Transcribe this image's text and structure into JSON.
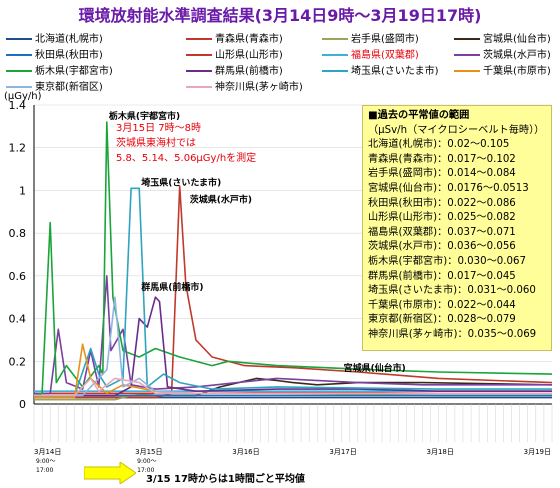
{
  "page": {
    "title": "環境放射能水準調査結果(3月14日9時～3月19日17時)"
  },
  "chart_data": {
    "type": "line",
    "ylabel": "(μGy/h)",
    "ylim": [
      0,
      1.4
    ],
    "yticks": [
      0,
      0.2,
      0.4,
      0.6,
      0.8,
      1,
      1.2,
      1.4
    ],
    "ytick_labels": [
      "0",
      "0.2",
      "0.4",
      "0.6",
      "0.8",
      "1",
      "1.2",
      "1.4"
    ],
    "x_day_labels": [
      "3月14日",
      "3月15日",
      "3月16日",
      "3月17日",
      "3月18日",
      "3月19日"
    ],
    "x_day_hours": [
      0,
      24,
      48,
      72,
      96,
      120
    ],
    "x_sublabels": [
      "9:00～",
      "17:00"
    ],
    "xlim": [
      0,
      128
    ],
    "series": [
      {
        "name": "北海道(札幌市)",
        "color": "#1f4e8c",
        "values": [
          [
            0,
            0.03
          ],
          [
            10,
            0.03
          ],
          [
            24,
            0.03
          ],
          [
            48,
            0.03
          ],
          [
            72,
            0.03
          ],
          [
            100,
            0.03
          ],
          [
            128,
            0.03
          ]
        ]
      },
      {
        "name": "青森県(青森市)",
        "color": "#c0392b",
        "values": [
          [
            0,
            0.03
          ],
          [
            24,
            0.03
          ],
          [
            30,
            0.03
          ],
          [
            34,
            0.05
          ],
          [
            36,
            1.02
          ],
          [
            37.5,
            0.56
          ],
          [
            40,
            0.3
          ],
          [
            44,
            0.22
          ],
          [
            52,
            0.18
          ],
          [
            64,
            0.17
          ],
          [
            80,
            0.15
          ],
          [
            100,
            0.12
          ],
          [
            128,
            0.1
          ]
        ]
      },
      {
        "name": "岩手県(盛岡市)",
        "color": "#9aa55a",
        "values": [
          [
            0,
            0.02
          ],
          [
            20,
            0.02
          ],
          [
            24,
            0.04
          ],
          [
            30,
            0.05
          ],
          [
            60,
            0.05
          ],
          [
            100,
            0.04
          ],
          [
            128,
            0.04
          ]
        ]
      },
      {
        "name": "宮城県(仙台市)",
        "color": "#3b2a1a",
        "values": [
          [
            0,
            0.04
          ],
          [
            40,
            0.04
          ],
          [
            46,
            0.08
          ],
          [
            55,
            0.12
          ],
          [
            60,
            0.11
          ],
          [
            64,
            0.1
          ],
          [
            70,
            0.09
          ],
          [
            80,
            0.1
          ],
          [
            96,
            0.1
          ],
          [
            128,
            0.09
          ]
        ]
      },
      {
        "name": "秋田県(秋田市)",
        "color": "#1f6fbf",
        "values": [
          [
            0,
            0.04
          ],
          [
            40,
            0.04
          ],
          [
            70,
            0.04
          ],
          [
            128,
            0.04
          ]
        ]
      },
      {
        "name": "山形県(山形市)",
        "color": "#c0392b",
        "values": [
          [
            0,
            0.05
          ],
          [
            40,
            0.05
          ],
          [
            100,
            0.06
          ],
          [
            128,
            0.06
          ]
        ]
      },
      {
        "name": "福島県(双葉郡)",
        "color": "#3fb0d8",
        "values": [
          [
            0,
            0.06
          ],
          [
            40,
            0.06
          ],
          [
            100,
            0.06
          ],
          [
            128,
            0.06
          ]
        ]
      },
      {
        "name": "茨城県(水戸市)",
        "color": "#7b3fa0",
        "values": [
          [
            0,
            0.05
          ],
          [
            4,
            0.05
          ],
          [
            6,
            0.35
          ],
          [
            8,
            0.1
          ],
          [
            12,
            0.07
          ],
          [
            14,
            0.25
          ],
          [
            16,
            0.08
          ],
          [
            18,
            0.6
          ],
          [
            19,
            0.25
          ],
          [
            22,
            0.35
          ],
          [
            24,
            0.09
          ],
          [
            30,
            0.07
          ],
          [
            40,
            0.08
          ],
          [
            60,
            0.12
          ],
          [
            80,
            0.1
          ],
          [
            96,
            0.09
          ],
          [
            128,
            0.09
          ]
        ]
      },
      {
        "name": "栃木県(宇都宮市)",
        "color": "#1aa43a",
        "values": [
          [
            0,
            0.04
          ],
          [
            2,
            0.05
          ],
          [
            4,
            0.85
          ],
          [
            5.5,
            0.1
          ],
          [
            8,
            0.18
          ],
          [
            12,
            0.08
          ],
          [
            16,
            0.18
          ],
          [
            17,
            0.14
          ],
          [
            18,
            1.32
          ],
          [
            19.5,
            0.5
          ],
          [
            22,
            0.25
          ],
          [
            26,
            0.22
          ],
          [
            30,
            0.26
          ],
          [
            36,
            0.22
          ],
          [
            44,
            0.18
          ],
          [
            48,
            0.2
          ],
          [
            60,
            0.18
          ],
          [
            72,
            0.17
          ],
          [
            84,
            0.16
          ],
          [
            100,
            0.15
          ],
          [
            128,
            0.14
          ]
        ]
      },
      {
        "name": "群馬県(前橋市)",
        "color": "#6a2c8c",
        "values": [
          [
            0,
            0.04
          ],
          [
            20,
            0.04
          ],
          [
            24,
            0.08
          ],
          [
            26,
            0.4
          ],
          [
            28,
            0.36
          ],
          [
            30,
            0.5
          ],
          [
            31,
            0.48
          ],
          [
            33,
            0.08
          ],
          [
            40,
            0.06
          ],
          [
            60,
            0.07
          ],
          [
            80,
            0.07
          ],
          [
            100,
            0.06
          ],
          [
            128,
            0.06
          ]
        ]
      },
      {
        "name": "埼玉県(さいたま市)",
        "color": "#2da4c0",
        "values": [
          [
            0,
            0.04
          ],
          [
            10,
            0.04
          ],
          [
            14,
            0.26
          ],
          [
            16,
            0.14
          ],
          [
            18,
            0.08
          ],
          [
            22,
            0.12
          ],
          [
            24,
            1.01
          ],
          [
            26,
            1.01
          ],
          [
            28,
            0.08
          ],
          [
            32,
            0.14
          ],
          [
            36,
            0.1
          ],
          [
            44,
            0.07
          ],
          [
            60,
            0.08
          ],
          [
            100,
            0.07
          ],
          [
            128,
            0.07
          ]
        ]
      },
      {
        "name": "千葉県(市原市)",
        "color": "#e8901a",
        "values": [
          [
            0,
            0.03
          ],
          [
            10,
            0.03
          ],
          [
            12,
            0.28
          ],
          [
            14,
            0.12
          ],
          [
            18,
            0.05
          ],
          [
            22,
            0.09
          ],
          [
            30,
            0.06
          ],
          [
            40,
            0.05
          ],
          [
            60,
            0.05
          ],
          [
            100,
            0.05
          ],
          [
            128,
            0.05
          ]
        ]
      },
      {
        "name": "東京都(新宿区)",
        "color": "#8fb4e0",
        "values": [
          [
            0,
            0.04
          ],
          [
            12,
            0.04
          ],
          [
            18,
            0.16
          ],
          [
            20,
            0.5
          ],
          [
            22,
            0.08
          ],
          [
            26,
            0.12
          ],
          [
            30,
            0.06
          ],
          [
            40,
            0.05
          ],
          [
            60,
            0.05
          ],
          [
            100,
            0.05
          ],
          [
            128,
            0.05
          ]
        ]
      },
      {
        "name": "神奈川県(茅ヶ崎市)",
        "color": "#e8a8b8",
        "values": [
          [
            0,
            0.04
          ],
          [
            10,
            0.04
          ],
          [
            14,
            0.12
          ],
          [
            16,
            0.06
          ],
          [
            20,
            0.12
          ],
          [
            26,
            0.1
          ],
          [
            30,
            0.05
          ],
          [
            60,
            0.05
          ],
          [
            128,
            0.05
          ]
        ]
      }
    ],
    "annotations": [
      {
        "text": "栃木県(宇都宮市)",
        "x": 18,
        "y": 1.32,
        "color": "#000000"
      },
      {
        "text": "埼玉県(さいたま市)",
        "x": 26,
        "y": 1.01,
        "color": "#000000"
      },
      {
        "text": "茨城県(水戸市)",
        "x": 38,
        "y": 0.93,
        "color": "#000000"
      },
      {
        "text": "群馬県(前橋市)",
        "x": 26,
        "y": 0.52,
        "color": "#000000"
      },
      {
        "text": "宮城県(仙台市)",
        "x": 76,
        "y": 0.14,
        "color": "#000000"
      }
    ]
  },
  "legend_label_color_highlight": "#e8000a",
  "note": {
    "lines": [
      "3月15日 7時～8時",
      "茨城県東海村では",
      "5.8、5.14、5.06μGy/hを測定"
    ]
  },
  "info_box": {
    "heading": "■過去の平常値の範囲",
    "unit": "（μSv/h（マイクロシーベルト毎時））",
    "rows": [
      "北海道(札幌市)：0.02～0.105",
      "青森県(青森市)：0.017～0.102",
      "岩手県(盛岡市)：0.014～0.084",
      "宮城県(仙台市)：0.0176～0.0513",
      "秋田県(秋田市)：0.022～0.086",
      "山形県(山形市)：0.025～0.082",
      "福島県(双葉郡)：0.037～0.071",
      "茨城県(水戸市)：0.036～0.056",
      "栃木県(宇都宮市)：0.030～0.067",
      "群馬県(前橋市)：0.017～0.045",
      "埼玉県(さいたま市)：0.031～0.060",
      "千葉県(市原市)：0.022～0.044",
      "東京都(新宿区)：0.028～0.079",
      "神奈川県(茅ヶ崎市)：0.035～0.069"
    ]
  },
  "footer": {
    "text": "3/15 17時からは1時間ごと平均値",
    "arrow_color": "#ffff00"
  }
}
